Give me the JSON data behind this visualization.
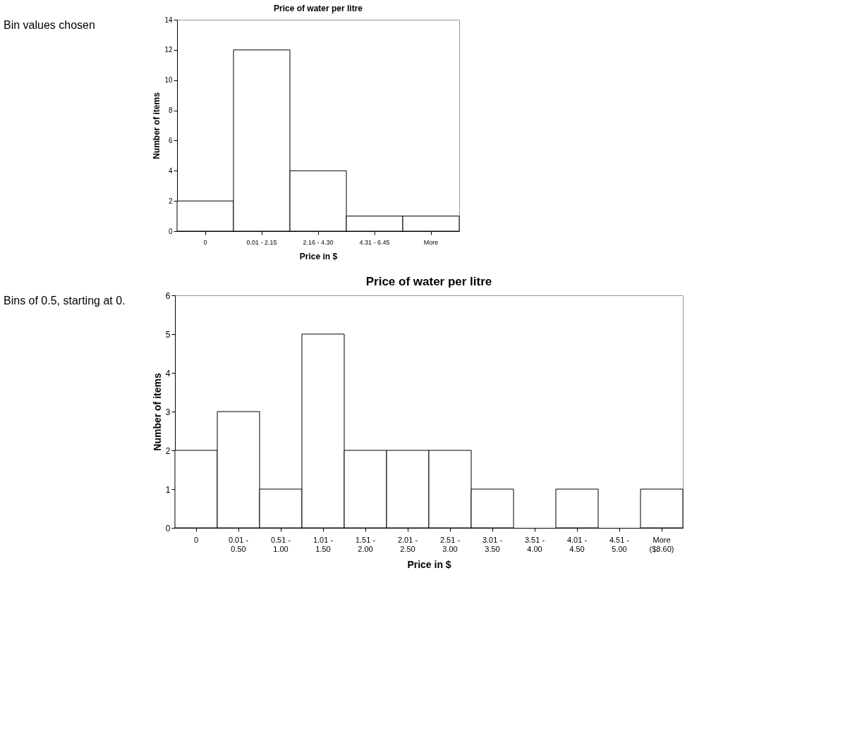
{
  "chart_data": [
    {
      "type": "bar",
      "title": "Price of water per litre",
      "xlabel": "Price in $",
      "ylabel": "Number of items",
      "annotations": [
        "Bin values chosen"
      ],
      "categories": [
        "0",
        "0.01 - 2.15",
        "2.16 - 4.30",
        "4.31 - 6.45",
        "More"
      ],
      "values": [
        2,
        12,
        4,
        1,
        1
      ],
      "color": "#ffffff",
      "ylim": [
        0,
        14
      ],
      "yticks": [
        0,
        2,
        4,
        6,
        8,
        10,
        12,
        14
      ],
      "grid": false
    },
    {
      "type": "bar",
      "title": "Price of water per litre",
      "xlabel": "Price in $",
      "ylabel": "Number of items",
      "annotations": [
        "Bins of 0.5, starting at 0."
      ],
      "categories": [
        "0",
        "0.01 - 0.50",
        "0.51 - 1.00",
        "1.01 - 1.50",
        "1.51 - 2.00",
        "2.01 - 2.50",
        "2.51 - 3.00",
        "3.01 - 3.50",
        "3.51 - 4.00",
        "4.01 - 4.50",
        "4.51 - 5.00",
        "More ($8.60)"
      ],
      "values": [
        2,
        3,
        1,
        5,
        2,
        2,
        2,
        1,
        0,
        1,
        0,
        1
      ],
      "color": "#ffffff",
      "ylim": [
        0,
        6
      ],
      "yticks": [
        0,
        1,
        2,
        3,
        4,
        5,
        6
      ],
      "grid": false
    }
  ]
}
